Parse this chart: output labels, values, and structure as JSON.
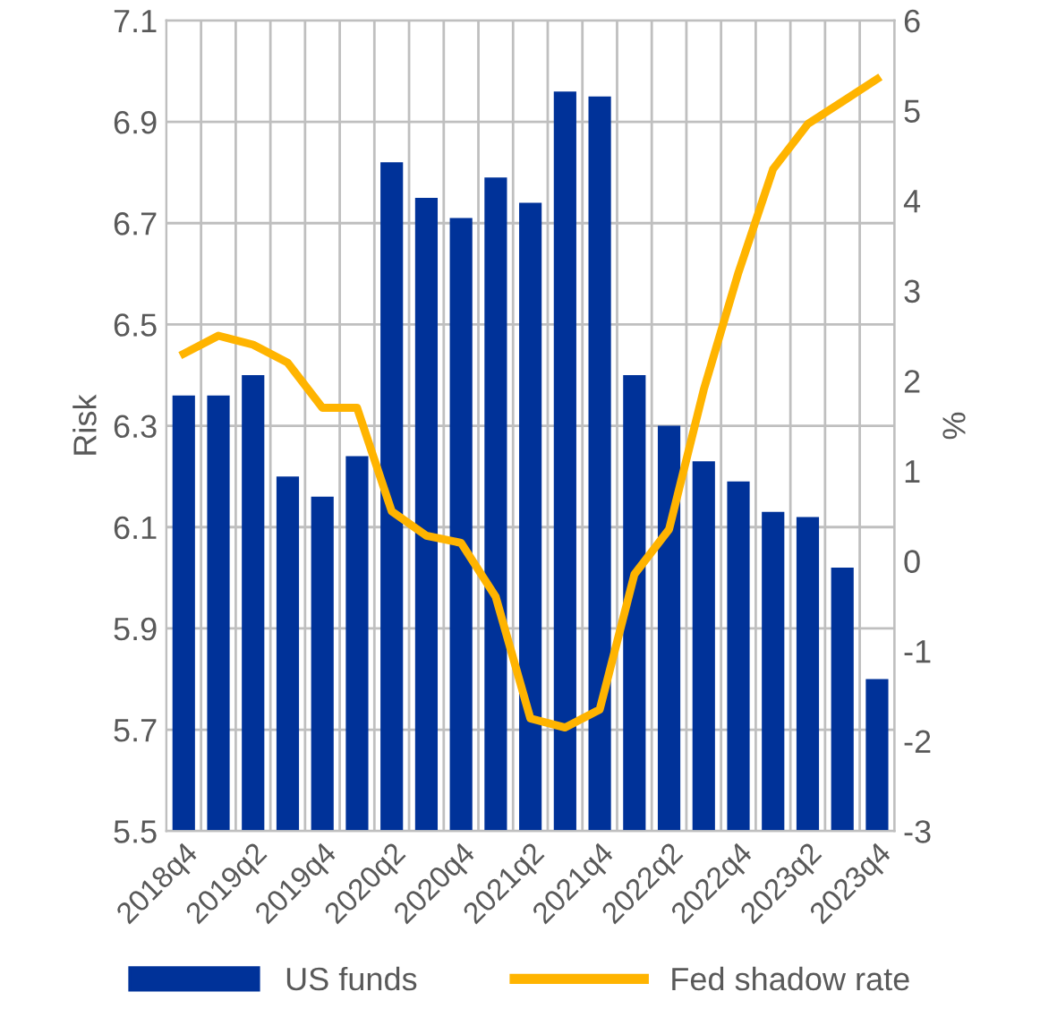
{
  "chart_data": {
    "type": "bar",
    "categories": [
      "2018q4",
      null,
      "2019q2",
      null,
      "2019q4",
      null,
      "2020q2",
      null,
      "2020q4",
      null,
      "2021q2",
      null,
      "2021q4",
      null,
      "2022q2",
      null,
      "2022q4",
      null,
      "2023q2",
      null,
      "2023q4"
    ],
    "series": [
      {
        "name": "US funds",
        "color": "#003299",
        "values": [
          6.36,
          6.36,
          6.4,
          6.2,
          6.16,
          6.24,
          6.82,
          6.75,
          6.71,
          6.79,
          6.74,
          6.96,
          6.95,
          6.4,
          6.3,
          6.23,
          6.19,
          6.13,
          6.12,
          6.02,
          5.8
        ]
      },
      {
        "name": "Fed shadow rate",
        "type": "line",
        "axis": "y2",
        "color": "#ffb400",
        "values": [
          2.3,
          2.5,
          2.4,
          2.2,
          1.7,
          1.7,
          0.55,
          0.28,
          0.2,
          -0.4,
          -1.75,
          -1.85,
          -1.65,
          -0.15,
          0.35,
          1.9,
          3.2,
          4.35,
          4.85,
          5.1,
          5.35
        ]
      }
    ],
    "ylabel": "Risk",
    "y2label": "%",
    "ylim": [
      5.5,
      7.1
    ],
    "yticks": [
      5.5,
      5.7,
      5.9,
      6.1,
      6.3,
      6.5,
      6.7,
      6.9,
      7.1
    ],
    "y2lim": [
      -3,
      6
    ],
    "y2ticks": [
      -3,
      -2,
      -1,
      0,
      1,
      2,
      3,
      4,
      5,
      6
    ],
    "grid": true,
    "legend": "bottom",
    "marker": "none",
    "line_style": "solid"
  }
}
